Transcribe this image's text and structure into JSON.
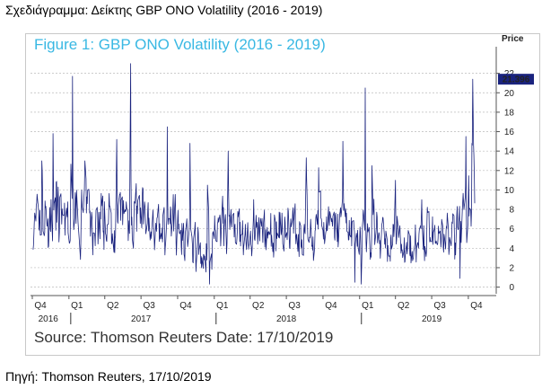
{
  "caption": "Σχεδιάγραμμα: Δείκτης GBP ONO Volatility (2016 - 2019)",
  "source_note": "Πηγή: Thomson Reuters, 17/10/2019",
  "chart_data": {
    "type": "line",
    "title": "Figure 1: GBP ONO Volatility (2016 - 2019)",
    "source": "Source: Thomson Reuters Date: 17/10/2019",
    "y_axis_label": "Price",
    "ylim": [
      -0.5,
      24
    ],
    "y_ticks": [
      0,
      2,
      4,
      6,
      8,
      10,
      12,
      14,
      16,
      18,
      20,
      22
    ],
    "y_tick_labels": [
      "0",
      "2",
      "4",
      "6",
      "8",
      "10",
      "12",
      "14",
      "16",
      "18",
      "20",
      "22"
    ],
    "last_value_label": "21.396",
    "last_value": 21.396,
    "x_range": [
      "2016-10-01",
      "2019-10-17"
    ],
    "quarter_ticks": [
      {
        "date": "2016-10-01",
        "label": "Q4"
      },
      {
        "date": "2017-01-01",
        "label": "Q1"
      },
      {
        "date": "2017-04-01",
        "label": "Q2"
      },
      {
        "date": "2017-07-01",
        "label": "Q3"
      },
      {
        "date": "2017-10-01",
        "label": "Q4"
      },
      {
        "date": "2018-01-01",
        "label": "Q1"
      },
      {
        "date": "2018-04-01",
        "label": "Q2"
      },
      {
        "date": "2018-07-01",
        "label": "Q3"
      },
      {
        "date": "2018-10-01",
        "label": "Q4"
      },
      {
        "date": "2019-01-01",
        "label": "Q1"
      },
      {
        "date": "2019-04-01",
        "label": "Q2"
      },
      {
        "date": "2019-07-01",
        "label": "Q3"
      },
      {
        "date": "2019-10-01",
        "label": "Q4"
      }
    ],
    "year_labels": [
      {
        "date": "2016-11-10",
        "label": "2016"
      },
      {
        "date": "2017-07-01",
        "label": "2017"
      },
      {
        "date": "2018-07-01",
        "label": "2018"
      },
      {
        "date": "2019-07-01",
        "label": "2019"
      }
    ],
    "year_separators": [
      "2017-01-01",
      "2018-01-01",
      "2019-01-01"
    ],
    "series": [
      {
        "color": "#1a237e",
        "base_level": [
          {
            "date": "2016-10-01",
            "value": 6.5
          },
          {
            "date": "2017-02-01",
            "value": 7.0
          },
          {
            "date": "2017-06-01",
            "value": 6.8
          },
          {
            "date": "2017-10-01",
            "value": 5.5
          },
          {
            "date": "2017-12-15",
            "value": 3.0
          },
          {
            "date": "2018-01-15",
            "value": 5.8
          },
          {
            "date": "2018-04-01",
            "value": 5.0
          },
          {
            "date": "2018-07-01",
            "value": 5.5
          },
          {
            "date": "2018-10-01",
            "value": 6.2
          },
          {
            "date": "2018-12-15",
            "value": 5.5
          },
          {
            "date": "2019-03-01",
            "value": 5.0
          },
          {
            "date": "2019-06-01",
            "value": 4.5
          },
          {
            "date": "2019-08-15",
            "value": 5.5
          },
          {
            "date": "2019-09-20",
            "value": 7.0
          },
          {
            "date": "2019-10-17",
            "value": 9.0
          }
        ],
        "spikes": [
          {
            "date": "2016-10-25",
            "value": 13.0
          },
          {
            "date": "2016-11-22",
            "value": 15.8
          },
          {
            "date": "2017-01-10",
            "value": 21.7
          },
          {
            "date": "2017-02-10",
            "value": 13.0
          },
          {
            "date": "2017-05-01",
            "value": 15.2
          },
          {
            "date": "2017-06-05",
            "value": 23.0
          },
          {
            "date": "2017-09-05",
            "value": 16.5
          },
          {
            "date": "2017-11-01",
            "value": 14.8
          },
          {
            "date": "2017-12-15",
            "value": 10.5
          },
          {
            "date": "2018-02-05",
            "value": 14.0
          },
          {
            "date": "2018-04-10",
            "value": 9.0
          },
          {
            "date": "2018-08-20",
            "value": 13.3
          },
          {
            "date": "2018-09-20",
            "value": 12.3
          },
          {
            "date": "2018-11-20",
            "value": 15.0
          },
          {
            "date": "2019-01-15",
            "value": 20.5
          },
          {
            "date": "2019-02-01",
            "value": 12.5
          },
          {
            "date": "2019-04-01",
            "value": 11.0
          },
          {
            "date": "2019-09-25",
            "value": 15.5
          },
          {
            "date": "2019-10-12",
            "value": 21.4
          }
        ],
        "dips": [
          {
            "date": "2017-12-20",
            "value": 0.3
          },
          {
            "date": "2018-12-20",
            "value": 0.5
          },
          {
            "date": "2019-01-05",
            "value": 0.3
          },
          {
            "date": "2019-09-10",
            "value": 0.9
          }
        ]
      }
    ]
  }
}
